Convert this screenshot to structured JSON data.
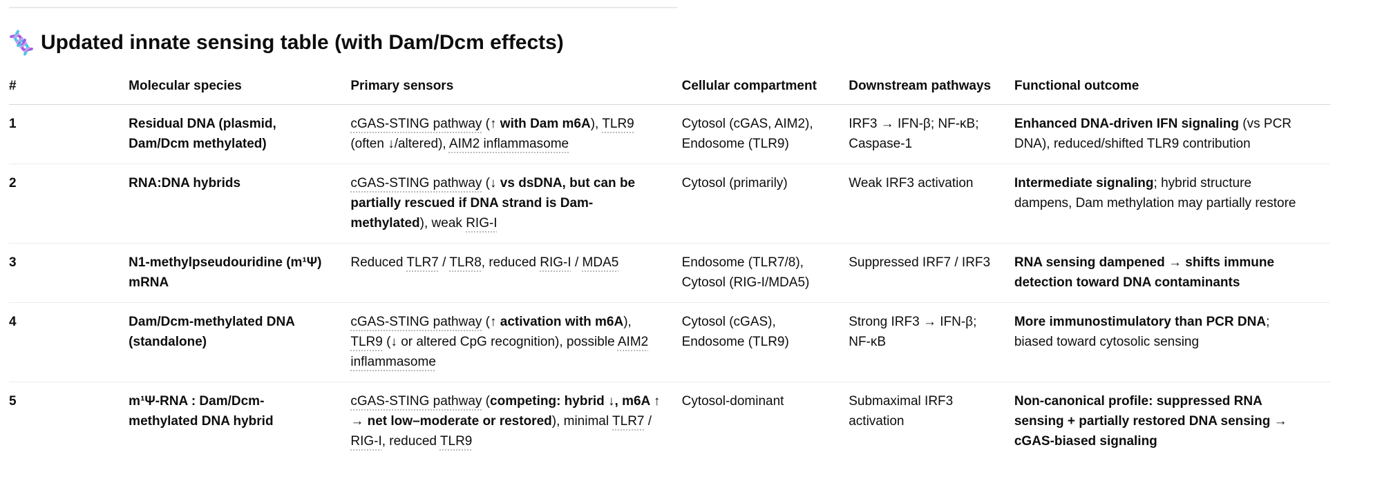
{
  "colors": {
    "text": "#0d0d0d",
    "divider": "#e8e8e8",
    "header_border": "#d6d6d6",
    "row_border": "#ececec",
    "link_underline": "#b9b9b9",
    "dna_purple": "#a05ce6",
    "dna_cyan": "#49c5e8"
  },
  "title": {
    "icon": "dna-emoji",
    "text": "Updated innate sensing table (with Dam/Dcm effects)"
  },
  "table": {
    "headers": [
      "#",
      "Molecular species",
      "Primary sensors",
      "Cellular compartment",
      "Downstream pathways",
      "Functional outcome"
    ],
    "rows": [
      {
        "num": "1",
        "species": [
          {
            "t": "Residual DNA (plasmid, Dam/Dcm methylated)",
            "b": 1
          }
        ],
        "sensors": [
          {
            "t": "cGAS-STING pathway",
            "u": 1
          },
          {
            "t": " ("
          },
          {
            "t": "↑ with Dam m6A",
            "b": 1
          },
          {
            "t": "), "
          },
          {
            "t": "TLR9",
            "u": 1
          },
          {
            "t": " (often ↓/altered), "
          },
          {
            "t": "AIM2 inflammasome",
            "u": 1
          }
        ],
        "compartment": [
          {
            "t": "Cytosol (cGAS, AIM2), Endosome (TLR9)"
          }
        ],
        "pathways": [
          {
            "t": "IRF3 → IFN-β; NF-κB; Caspase-1"
          }
        ],
        "outcome": [
          {
            "t": "Enhanced DNA-driven IFN signaling",
            "b": 1
          },
          {
            "t": " (vs PCR DNA), reduced/shifted TLR9 contribution"
          }
        ]
      },
      {
        "num": "2",
        "species": [
          {
            "t": "RNA:DNA hybrids",
            "b": 1
          }
        ],
        "sensors": [
          {
            "t": "cGAS-STING pathway",
            "u": 1
          },
          {
            "t": " ("
          },
          {
            "t": "↓ vs dsDNA, but can be partially rescued if DNA strand is Dam-methylated",
            "b": 1
          },
          {
            "t": "), weak "
          },
          {
            "t": "RIG-I",
            "u": 1
          }
        ],
        "compartment": [
          {
            "t": "Cytosol (primarily)"
          }
        ],
        "pathways": [
          {
            "t": "Weak IRF3 activation"
          }
        ],
        "outcome": [
          {
            "t": "Intermediate signaling",
            "b": 1
          },
          {
            "t": "; hybrid structure dampens, Dam methylation may partially restore"
          }
        ]
      },
      {
        "num": "3",
        "species": [
          {
            "t": "N1-methylpseudouridine (m¹Ψ) mRNA",
            "b": 1
          }
        ],
        "sensors": [
          {
            "t": "Reduced "
          },
          {
            "t": "TLR7",
            "u": 1
          },
          {
            "t": " / "
          },
          {
            "t": "TLR8",
            "u": 1
          },
          {
            "t": ", reduced "
          },
          {
            "t": "RIG-I",
            "u": 1
          },
          {
            "t": " / "
          },
          {
            "t": "MDA5",
            "u": 1
          }
        ],
        "compartment": [
          {
            "t": "Endosome (TLR7/8), Cytosol (RIG-I/MDA5)"
          }
        ],
        "pathways": [
          {
            "t": "Suppressed IRF7 / IRF3"
          }
        ],
        "outcome": [
          {
            "t": "RNA sensing dampened → shifts immune detection toward DNA contaminants",
            "b": 1
          }
        ]
      },
      {
        "num": "4",
        "species": [
          {
            "t": "Dam/Dcm-methylated DNA (standalone)",
            "b": 1
          }
        ],
        "sensors": [
          {
            "t": "cGAS-STING pathway",
            "u": 1
          },
          {
            "t": " ("
          },
          {
            "t": "↑ activation with m6A",
            "b": 1
          },
          {
            "t": "), "
          },
          {
            "t": "TLR9",
            "u": 1
          },
          {
            "t": " (↓ or altered CpG recognition), possible "
          },
          {
            "t": "AIM2 inflammasome",
            "u": 1
          }
        ],
        "compartment": [
          {
            "t": "Cytosol (cGAS), Endosome (TLR9)"
          }
        ],
        "pathways": [
          {
            "t": "Strong IRF3 → IFN-β; NF-κB"
          }
        ],
        "outcome": [
          {
            "t": "More immunostimulatory than PCR DNA",
            "b": 1
          },
          {
            "t": "; biased toward cytosolic sensing"
          }
        ]
      },
      {
        "num": "5",
        "species": [
          {
            "t": "m¹Ψ-RNA : Dam/Dcm-methylated DNA hybrid",
            "b": 1
          }
        ],
        "sensors": [
          {
            "t": "cGAS-STING pathway",
            "u": 1
          },
          {
            "t": " ("
          },
          {
            "t": "competing: hybrid ↓, m6A ↑ → net low–moderate or restored",
            "b": 1
          },
          {
            "t": "), minimal "
          },
          {
            "t": "TLR7",
            "u": 1
          },
          {
            "t": " / "
          },
          {
            "t": "RIG-I",
            "u": 1
          },
          {
            "t": ", reduced "
          },
          {
            "t": "TLR9",
            "u": 1
          }
        ],
        "compartment": [
          {
            "t": "Cytosol-dominant"
          }
        ],
        "pathways": [
          {
            "t": "Submaximal IRF3 activation"
          }
        ],
        "outcome": [
          {
            "t": "Non-canonical profile: suppressed RNA sensing + partially restored DNA sensing → cGAS-biased signaling",
            "b": 1
          }
        ]
      }
    ]
  }
}
